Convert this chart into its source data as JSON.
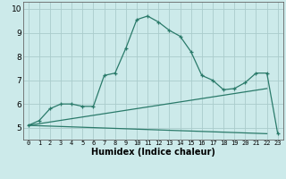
{
  "title": "",
  "xlabel": "Humidex (Indice chaleur)",
  "bg_color": "#cceaea",
  "line_color": "#2a7a6a",
  "grid_color": "#aacccc",
  "xlim": [
    -0.5,
    23.5
  ],
  "ylim": [
    4.5,
    10.3
  ],
  "xticks": [
    0,
    1,
    2,
    3,
    4,
    5,
    6,
    7,
    8,
    9,
    10,
    11,
    12,
    13,
    14,
    15,
    16,
    17,
    18,
    19,
    20,
    21,
    22,
    23
  ],
  "yticks": [
    5,
    6,
    7,
    8,
    9,
    10
  ],
  "curve1_x": [
    0,
    1,
    2,
    3,
    4,
    5,
    6,
    7,
    8,
    9,
    10,
    11,
    12,
    13,
    14,
    15,
    16,
    17,
    18,
    19,
    20,
    21,
    22,
    23
  ],
  "curve1_y": [
    5.1,
    5.3,
    5.8,
    6.0,
    6.0,
    5.9,
    5.9,
    7.2,
    7.3,
    8.35,
    9.55,
    9.7,
    9.45,
    9.1,
    8.85,
    8.2,
    7.2,
    7.0,
    6.6,
    6.65,
    6.9,
    7.3,
    7.3,
    4.75
  ],
  "curve2_x": [
    0,
    22
  ],
  "curve2_y": [
    5.1,
    6.65
  ],
  "curve3_x": [
    0,
    22
  ],
  "curve3_y": [
    5.1,
    4.75
  ],
  "xlabel_fontsize": 7,
  "tick_fontsize": 5,
  "ytick_fontsize": 6.5
}
